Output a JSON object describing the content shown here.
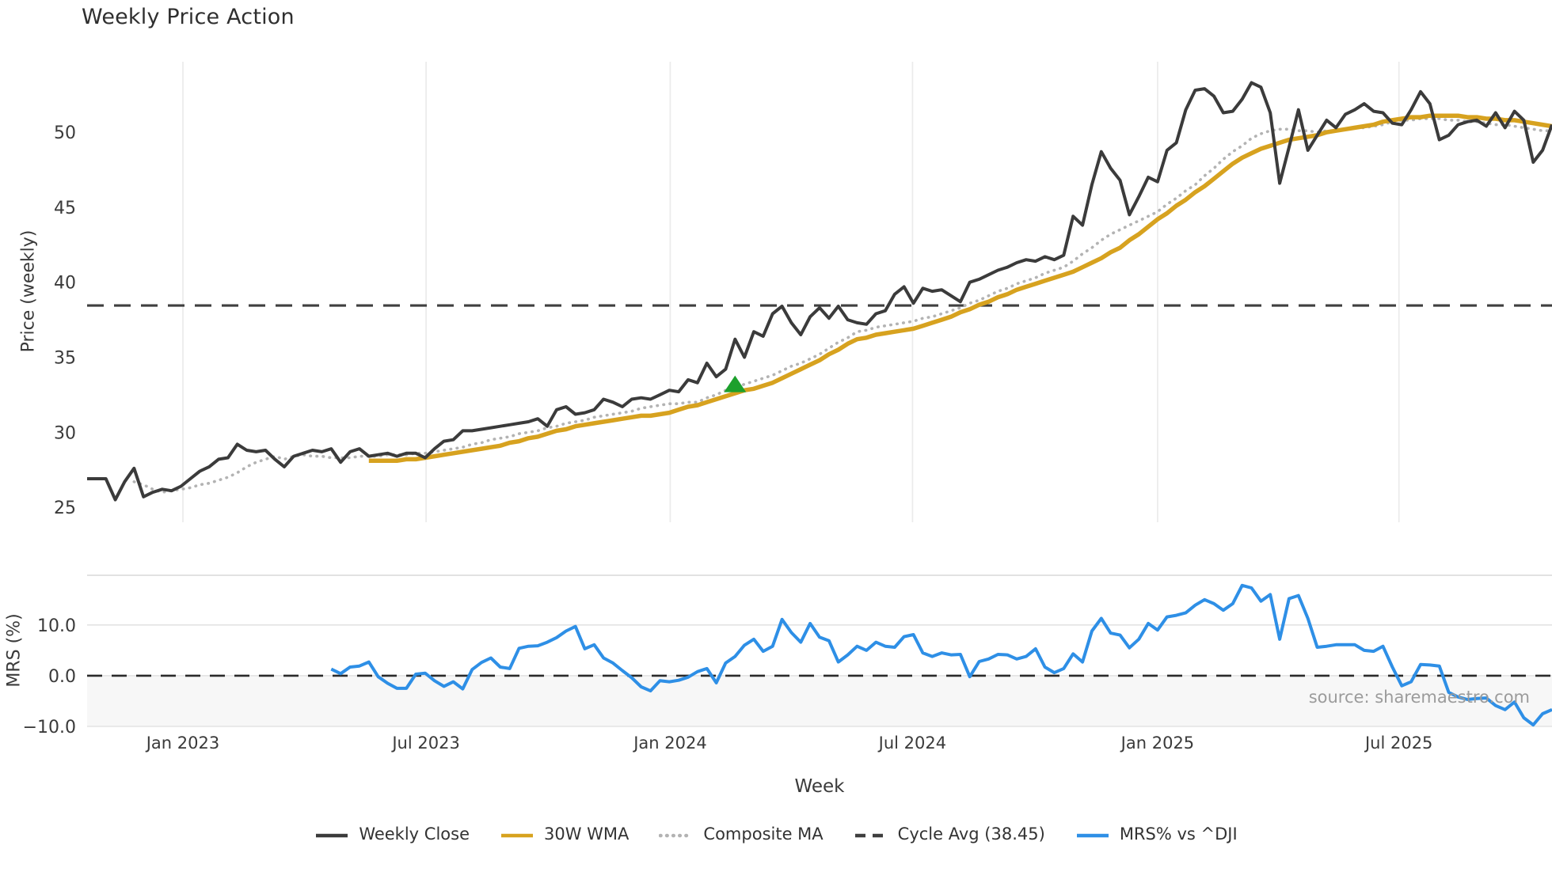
{
  "title": "Weekly Price Action",
  "axes": {
    "price_ylabel": "Price (weekly)",
    "mrs_ylabel": "MRS (%)",
    "xlabel": "Week"
  },
  "source_note": "source: sharemaestro.com",
  "legend": {
    "items": [
      {
        "label": "Weekly Close",
        "color": "#3b3b3b",
        "style": "solid"
      },
      {
        "label": "30W WMA",
        "color": "#d7a21f",
        "style": "solid"
      },
      {
        "label": "Composite MA",
        "color": "#b3b3b3",
        "style": "dotted"
      },
      {
        "label": "Cycle Avg (38.45)",
        "color": "#3f3f3f",
        "style": "dashed"
      },
      {
        "label": "MRS% vs ^DJI",
        "color": "#2e8fe6",
        "style": "solid"
      }
    ]
  },
  "chart_data": {
    "type": "line",
    "x_unit": "weekly index (Oct 2022 - Oct 2025)",
    "weeks_total": 156,
    "x_ticks": [
      {
        "week": 10.2,
        "label": "Jan 2023"
      },
      {
        "week": 36.1,
        "label": "Jul 2023"
      },
      {
        "week": 62.1,
        "label": "Jan 2024"
      },
      {
        "week": 87.9,
        "label": "Jul 2024"
      },
      {
        "week": 114.0,
        "label": "Jan 2025"
      },
      {
        "week": 139.7,
        "label": "Jul 2025"
      }
    ],
    "panels": [
      {
        "name": "price",
        "ylabel": "Price (weekly)",
        "ylim": [
          24.0,
          54.7
        ],
        "yticks": [
          25,
          30,
          35,
          40,
          45,
          50
        ],
        "grid": "vertical-only",
        "cycle_avg": 38.45,
        "marker": {
          "shape": "triangle-up",
          "color": "#1ca02c",
          "week": 69,
          "value": 33.2
        },
        "series": [
          {
            "name": "Weekly Close",
            "color": "#3b3b3b",
            "style": "solid",
            "width": 4,
            "start_week": 0,
            "values": [
              26.9,
              26.9,
              26.9,
              25.5,
              26.7,
              27.6,
              25.7,
              26.0,
              26.2,
              26.1,
              26.4,
              26.9,
              27.4,
              27.7,
              28.2,
              28.3,
              29.2,
              28.8,
              28.7,
              28.8,
              28.2,
              27.7,
              28.4,
              28.6,
              28.8,
              28.7,
              28.9,
              28.0,
              28.7,
              28.9,
              28.4,
              28.5,
              28.6,
              28.4,
              28.6,
              28.6,
              28.3,
              28.9,
              29.4,
              29.5,
              30.1,
              30.1,
              30.2,
              30.3,
              30.4,
              30.5,
              30.6,
              30.7,
              30.9,
              30.4,
              31.5,
              31.7,
              31.2,
              31.3,
              31.5,
              32.2,
              32.0,
              31.7,
              32.2,
              32.3,
              32.2,
              32.5,
              32.8,
              32.7,
              33.5,
              33.3,
              34.6,
              33.7,
              34.2,
              36.2,
              35.0,
              36.7,
              36.4,
              37.9,
              38.4,
              37.3,
              36.5,
              37.7,
              38.3,
              37.6,
              38.4,
              37.5,
              37.3,
              37.2,
              37.9,
              38.1,
              39.2,
              39.7,
              38.6,
              39.6,
              39.4,
              39.5,
              39.1,
              38.7,
              40.0,
              40.2,
              40.5,
              40.8,
              41.0,
              41.3,
              41.5,
              41.4,
              41.7,
              41.5,
              41.8,
              44.4,
              43.8,
              46.5,
              48.7,
              47.6,
              46.8,
              44.5,
              45.7,
              47.0,
              46.7,
              48.8,
              49.3,
              51.5,
              52.8,
              52.9,
              52.4,
              51.3,
              51.4,
              52.2,
              53.3,
              53.0,
              51.3,
              46.6,
              49.0,
              51.5,
              48.8,
              49.8,
              50.8,
              50.3,
              51.2,
              51.5,
              51.9,
              51.4,
              51.3,
              50.6,
              50.5,
              51.5,
              52.7,
              51.9,
              49.5,
              49.8,
              50.5,
              50.7,
              50.8,
              50.4,
              51.3,
              50.3,
              51.4,
              50.8,
              48.0,
              48.8,
              50.5
            ]
          },
          {
            "name": "30W WMA",
            "color": "#d7a21f",
            "style": "solid",
            "width": 5.5,
            "start_week": 30,
            "values": [
              28.1,
              28.1,
              28.1,
              28.1,
              28.2,
              28.2,
              28.3,
              28.4,
              28.5,
              28.6,
              28.7,
              28.8,
              28.9,
              29.0,
              29.1,
              29.3,
              29.4,
              29.6,
              29.7,
              29.9,
              30.1,
              30.2,
              30.4,
              30.5,
              30.6,
              30.7,
              30.8,
              30.9,
              31.0,
              31.1,
              31.1,
              31.2,
              31.3,
              31.5,
              31.7,
              31.8,
              32.0,
              32.2,
              32.4,
              32.6,
              32.8,
              32.9,
              33.1,
              33.3,
              33.6,
              33.9,
              34.2,
              34.5,
              34.8,
              35.2,
              35.5,
              35.9,
              36.2,
              36.3,
              36.5,
              36.6,
              36.7,
              36.8,
              36.9,
              37.1,
              37.3,
              37.5,
              37.7,
              38.0,
              38.2,
              38.5,
              38.7,
              39.0,
              39.2,
              39.5,
              39.7,
              39.9,
              40.1,
              40.3,
              40.5,
              40.7,
              41.0,
              41.3,
              41.6,
              42.0,
              42.3,
              42.8,
              43.2,
              43.7,
              44.2,
              44.6,
              45.1,
              45.5,
              46.0,
              46.4,
              46.9,
              47.4,
              47.9,
              48.3,
              48.6,
              48.9,
              49.1,
              49.3,
              49.5,
              49.6,
              49.7,
              49.8,
              50.0,
              50.1,
              50.2,
              50.3,
              50.4,
              50.5,
              50.7,
              50.8,
              50.9,
              51.0,
              51.0,
              51.1,
              51.1,
              51.1,
              51.1,
              51.0,
              51.0,
              50.9,
              50.9,
              50.8,
              50.8,
              50.7,
              50.6,
              50.5,
              50.4
            ]
          },
          {
            "name": "Composite MA",
            "color": "#b3b3b3",
            "style": "dotted",
            "width": 3.6,
            "start_week": 5,
            "values": [
              26.7,
              26.5,
              26.2,
              26.0,
              26.1,
              26.2,
              26.3,
              26.5,
              26.6,
              26.8,
              27.0,
              27.3,
              27.7,
              28.0,
              28.2,
              28.4,
              28.2,
              28.4,
              28.5,
              28.4,
              28.4,
              28.3,
              28.3,
              28.3,
              28.4,
              28.4,
              28.4,
              28.5,
              28.5,
              28.5,
              28.6,
              28.6,
              28.7,
              28.8,
              28.9,
              29.0,
              29.2,
              29.3,
              29.5,
              29.6,
              29.7,
              29.9,
              30.0,
              30.1,
              30.3,
              30.4,
              30.6,
              30.7,
              30.8,
              31.0,
              31.1,
              31.2,
              31.3,
              31.4,
              31.6,
              31.7,
              31.8,
              31.9,
              31.9,
              32.0,
              32.0,
              32.3,
              32.5,
              32.8,
              33.0,
              33.2,
              33.4,
              33.6,
              33.8,
              34.1,
              34.4,
              34.6,
              34.9,
              35.2,
              35.6,
              36.0,
              36.3,
              36.7,
              36.8,
              37.0,
              37.1,
              37.2,
              37.3,
              37.4,
              37.6,
              37.7,
              37.9,
              38.1,
              38.3,
              38.6,
              38.8,
              39.1,
              39.4,
              39.6,
              39.9,
              40.1,
              40.3,
              40.6,
              40.8,
              41.0,
              41.4,
              41.9,
              42.3,
              42.8,
              43.2,
              43.5,
              43.8,
              44.1,
              44.4,
              44.7,
              45.2,
              45.6,
              46.1,
              46.5,
              47.1,
              47.6,
              48.2,
              48.7,
              49.1,
              49.6,
              49.9,
              50.1,
              50.2,
              50.2,
              50.1,
              50.1,
              50.0,
              50.1,
              50.1,
              50.2,
              50.3,
              50.3,
              50.4,
              50.5,
              50.7,
              50.8,
              50.8,
              50.9,
              50.9,
              50.9,
              50.8,
              50.8,
              50.7,
              50.7,
              50.6,
              50.5,
              50.5,
              50.4,
              50.3,
              50.2,
              50.1,
              50.1
            ]
          },
          {
            "name": "Cycle Avg",
            "color": "#3f3f3f",
            "style": "dashed",
            "width": 3.2,
            "constant": 38.45
          }
        ]
      },
      {
        "name": "mrs",
        "ylabel": "MRS (%)",
        "ylim": [
          -10.0,
          19.8
        ],
        "yticks": [
          10.0,
          0.0,
          -10.0
        ],
        "zero_line": {
          "value": 0,
          "style": "dashed",
          "color": "#2a2a2a"
        },
        "series": [
          {
            "name": "MRS% vs ^DJI",
            "color": "#2e8fe6",
            "style": "solid",
            "width": 4,
            "start_week": 26,
            "values": [
              1.3,
              0.4,
              1.7,
              1.9,
              2.7,
              -0.2,
              -1.5,
              -2.5,
              -2.5,
              0.3,
              0.5,
              -1.0,
              -2.1,
              -1.2,
              -2.6,
              1.2,
              2.6,
              3.5,
              1.7,
              1.4,
              5.4,
              5.8,
              5.9,
              6.6,
              7.5,
              8.8,
              9.7,
              5.3,
              6.1,
              3.5,
              2.5,
              1.0,
              -0.4,
              -2.2,
              -3.0,
              -1.0,
              -1.2,
              -0.9,
              -0.3,
              0.8,
              1.4,
              -1.4,
              2.5,
              3.8,
              6.0,
              7.2,
              4.8,
              5.8,
              11.1,
              8.5,
              6.6,
              10.3,
              7.6,
              6.9,
              2.7,
              4.1,
              5.8,
              5.0,
              6.6,
              5.8,
              5.6,
              7.7,
              8.1,
              4.5,
              3.8,
              4.5,
              4.1,
              4.2,
              -0.2,
              2.8,
              3.3,
              4.2,
              4.1,
              3.3,
              3.8,
              5.3,
              1.7,
              0.6,
              1.4,
              4.3,
              2.7,
              8.8,
              11.3,
              8.4,
              8.0,
              5.5,
              7.2,
              10.3,
              9.0,
              11.6,
              11.9,
              12.4,
              13.9,
              15.0,
              14.2,
              12.9,
              14.2,
              17.8,
              17.3,
              14.7,
              16.0,
              7.2,
              15.2,
              15.8,
              11.3,
              5.6,
              5.8,
              6.1,
              6.1,
              6.1,
              5.0,
              4.8,
              5.8,
              1.7,
              -2.0,
              -1.2,
              2.2,
              2.1,
              1.9,
              -3.3,
              -4.2,
              -4.7,
              -4.5,
              -4.4,
              -5.9,
              -6.7,
              -5.2,
              -8.3,
              -9.7,
              -7.5,
              -6.7
            ]
          }
        ]
      }
    ]
  }
}
